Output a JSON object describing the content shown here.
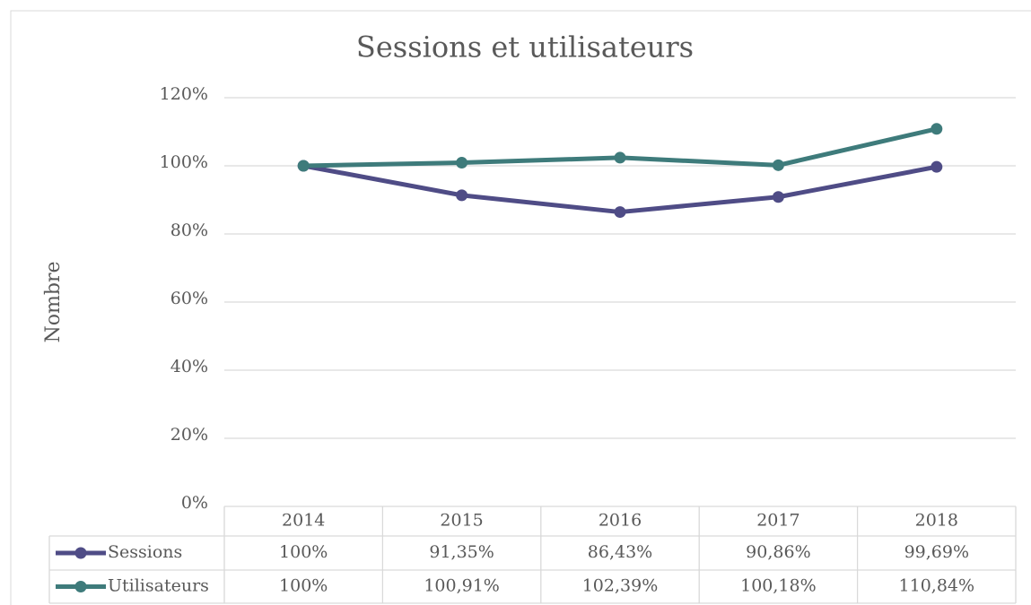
{
  "chart_data": {
    "type": "line",
    "title": "Sessions et utilisateurs",
    "y_label": "Nombre",
    "categories": [
      "2014",
      "2015",
      "2016",
      "2017",
      "2018"
    ],
    "series": [
      {
        "name": "Sessions",
        "color": "#4f4c86",
        "values": [
          100,
          91.35,
          86.43,
          90.86,
          99.69
        ],
        "value_labels": [
          "100%",
          "91,35%",
          "86,43%",
          "90,86%",
          "99,69%"
        ]
      },
      {
        "name": "Utilisateurs",
        "color": "#3e7b7b",
        "values": [
          100,
          100.91,
          102.39,
          100.18,
          110.84
        ],
        "value_labels": [
          "100%",
          "100,91%",
          "102,39%",
          "100,18%",
          "110,84%"
        ]
      }
    ],
    "ylim": [
      0,
      120
    ],
    "yticks": [
      {
        "value": 0,
        "label": "0%"
      },
      {
        "value": 20,
        "label": "20%"
      },
      {
        "value": 40,
        "label": "40%"
      },
      {
        "value": 60,
        "label": "60%"
      },
      {
        "value": 80,
        "label": "80%"
      },
      {
        "value": 100,
        "label": "100%"
      },
      {
        "value": 120,
        "label": "120%"
      }
    ],
    "grid": true,
    "data_table": true
  }
}
